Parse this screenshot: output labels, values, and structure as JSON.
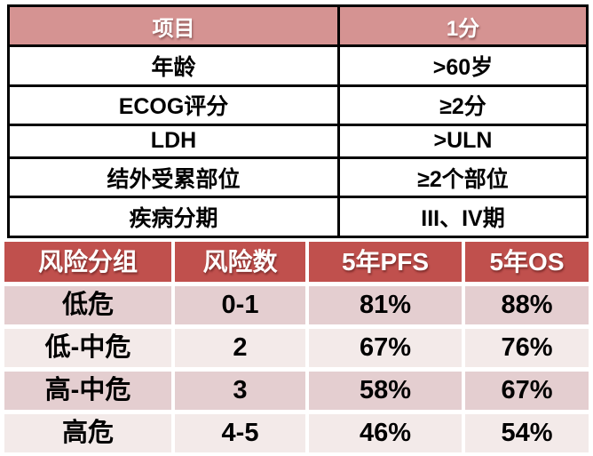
{
  "colors": {
    "score_header_bg": "#d59392",
    "risk_header_bg": "#c0504d",
    "risk_band_dark": "#e4ced0",
    "risk_band_light": "#f3eae9",
    "table_border": "#000000",
    "header_text": "#ffffff",
    "body_text": "#000000",
    "page_bg": "#ffffff"
  },
  "score_table": {
    "headers": {
      "item": "项目",
      "score": "1分"
    },
    "rows": [
      {
        "item": "年龄",
        "value": ">60岁"
      },
      {
        "item": "ECOG评分",
        "value": "≥2分"
      },
      {
        "item": "LDH",
        "value": ">ULN"
      },
      {
        "item": "结外受累部位",
        "value": "≥2个部位"
      },
      {
        "item": "疾病分期",
        "value": "III、IV期"
      }
    ]
  },
  "risk_table": {
    "headers": [
      "风险分组",
      "风险数",
      "5年PFS",
      "5年OS"
    ],
    "rows": [
      {
        "group": "低危",
        "count": "0-1",
        "pfs": "81%",
        "os": "88%"
      },
      {
        "group": "低-中危",
        "count": "2",
        "pfs": "67%",
        "os": "76%"
      },
      {
        "group": "高-中危",
        "count": "3",
        "pfs": "58%",
        "os": "67%"
      },
      {
        "group": "高危",
        "count": "4-5",
        "pfs": "46%",
        "os": "54%"
      }
    ]
  }
}
